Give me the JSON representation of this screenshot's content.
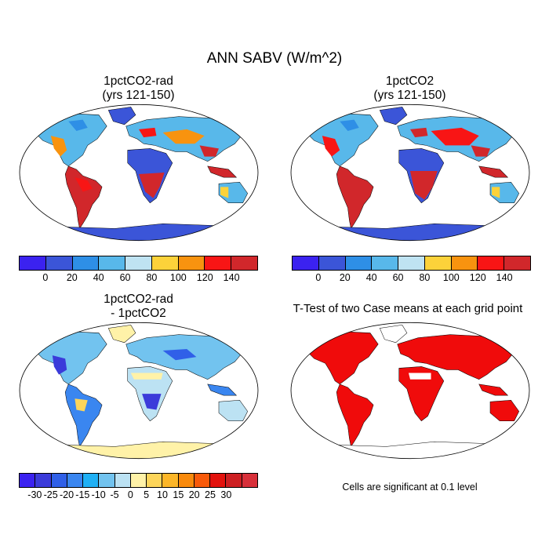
{
  "figure": {
    "title": "ANN SABV (W/m^2)"
  },
  "panels": [
    {
      "id": "rad",
      "title": "1pctCO2-rad\n(yrs 121-150)"
    },
    {
      "id": "ctl",
      "title": "1pctCO2\n(yrs 121-150)"
    },
    {
      "id": "diff",
      "title": "1pctCO2-rad\n- 1pctCO2"
    },
    {
      "id": "ttest",
      "title": "T-Test of two Case means at each grid point"
    }
  ],
  "colorbars": {
    "abs": {
      "colors": [
        "#3b22f0",
        "#3b55d8",
        "#2e8fe6",
        "#58b8ea",
        "#bfe3f2",
        "#fcd23a",
        "#f8930f",
        "#f81515",
        "#d1272b"
      ],
      "labels": [
        "0",
        "20",
        "40",
        "60",
        "80",
        "100",
        "120",
        "140"
      ]
    },
    "diff": {
      "colors": [
        "#3b22f0",
        "#3b3bda",
        "#3060e8",
        "#3a86f0",
        "#1fb0f5",
        "#72c3ef",
        "#bce2f3",
        "#fff2a8",
        "#fdd55a",
        "#fcb628",
        "#f98a0c",
        "#f85a0a",
        "#e3120d",
        "#cd1f22",
        "#d8303a"
      ],
      "labels": [
        "-30",
        "-25",
        "-20",
        "-15",
        "-10",
        "-5",
        "0",
        "5",
        "10",
        "15",
        "20",
        "25",
        "30"
      ]
    }
  },
  "significance_note": "Cells are significant at 0.1 level"
}
